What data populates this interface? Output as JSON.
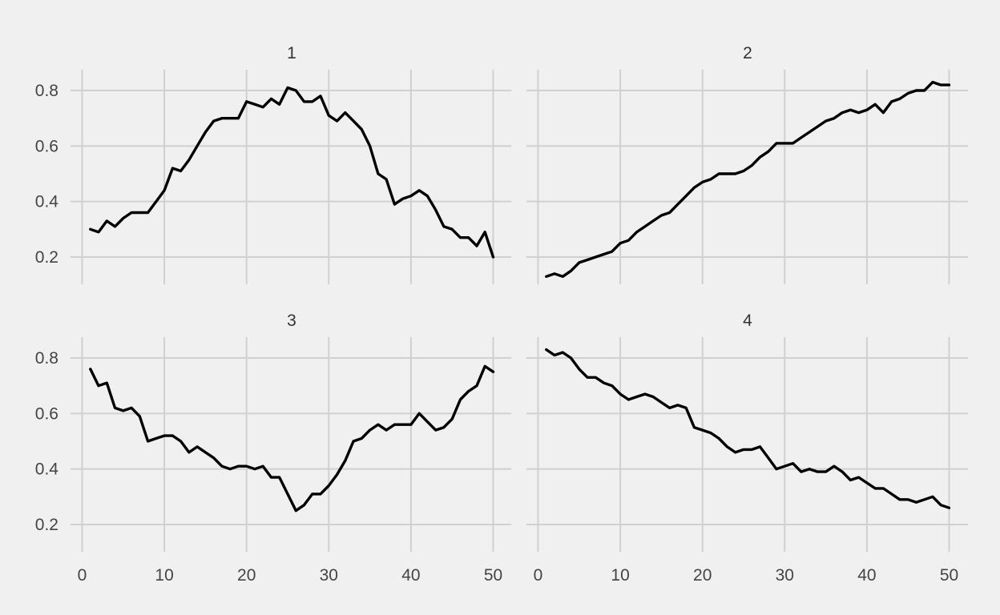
{
  "colors": {
    "background": "#f0f0f0",
    "grid": "#d0d0d0",
    "line": "#000000",
    "text": "#444444"
  },
  "chart_data": [
    {
      "type": "line",
      "panel": "1",
      "xlim": [
        0,
        50
      ],
      "ylim": [
        0.1,
        0.87
      ],
      "x_ticks": [
        0,
        10,
        20,
        30,
        40,
        50
      ],
      "y_ticks": [
        0.2,
        0.4,
        0.6,
        0.8
      ],
      "y_tick_labels": [
        "0.2",
        "0.4",
        "0.6",
        "0.8"
      ],
      "x_tick_labels": [],
      "grid": true,
      "x": [
        1,
        2,
        3,
        4,
        5,
        6,
        7,
        8,
        9,
        10,
        11,
        12,
        13,
        14,
        15,
        16,
        17,
        18,
        19,
        20,
        21,
        22,
        23,
        24,
        25,
        26,
        27,
        28,
        29,
        30,
        31,
        32,
        33,
        34,
        35,
        36,
        37,
        38,
        39,
        40,
        41,
        42,
        43,
        44,
        45,
        46,
        47,
        48,
        49,
        50
      ],
      "y": [
        0.3,
        0.29,
        0.33,
        0.31,
        0.34,
        0.36,
        0.36,
        0.36,
        0.4,
        0.44,
        0.52,
        0.51,
        0.55,
        0.6,
        0.65,
        0.69,
        0.7,
        0.7,
        0.7,
        0.76,
        0.75,
        0.74,
        0.77,
        0.75,
        0.81,
        0.8,
        0.76,
        0.76,
        0.78,
        0.71,
        0.69,
        0.72,
        0.69,
        0.66,
        0.6,
        0.5,
        0.48,
        0.39,
        0.41,
        0.42,
        0.44,
        0.42,
        0.37,
        0.31,
        0.3,
        0.27,
        0.27,
        0.24,
        0.29,
        0.2
      ]
    },
    {
      "type": "line",
      "panel": "2",
      "xlim": [
        0,
        50
      ],
      "ylim": [
        0.1,
        0.87
      ],
      "x_ticks": [
        0,
        10,
        20,
        30,
        40,
        50
      ],
      "y_ticks": [
        0.2,
        0.4,
        0.6,
        0.8
      ],
      "y_tick_labels": [],
      "x_tick_labels": [],
      "grid": true,
      "x": [
        1,
        2,
        3,
        4,
        5,
        6,
        7,
        8,
        9,
        10,
        11,
        12,
        13,
        14,
        15,
        16,
        17,
        18,
        19,
        20,
        21,
        22,
        23,
        24,
        25,
        26,
        27,
        28,
        29,
        30,
        31,
        32,
        33,
        34,
        35,
        36,
        37,
        38,
        39,
        40,
        41,
        42,
        43,
        44,
        45,
        46,
        47,
        48,
        49,
        50
      ],
      "y": [
        0.13,
        0.14,
        0.13,
        0.15,
        0.18,
        0.19,
        0.2,
        0.21,
        0.22,
        0.25,
        0.26,
        0.29,
        0.31,
        0.33,
        0.35,
        0.36,
        0.39,
        0.42,
        0.45,
        0.47,
        0.48,
        0.5,
        0.5,
        0.5,
        0.51,
        0.53,
        0.56,
        0.58,
        0.61,
        0.61,
        0.61,
        0.63,
        0.65,
        0.67,
        0.69,
        0.7,
        0.72,
        0.73,
        0.72,
        0.73,
        0.75,
        0.72,
        0.76,
        0.77,
        0.79,
        0.8,
        0.8,
        0.83,
        0.82,
        0.82
      ]
    },
    {
      "type": "line",
      "panel": "3",
      "xlim": [
        0,
        50
      ],
      "ylim": [
        0.1,
        0.87
      ],
      "x_ticks": [
        0,
        10,
        20,
        30,
        40,
        50
      ],
      "y_ticks": [
        0.2,
        0.4,
        0.6,
        0.8
      ],
      "y_tick_labels": [
        "0.2",
        "0.4",
        "0.6",
        "0.8"
      ],
      "x_tick_labels": [
        "0",
        "10",
        "20",
        "30",
        "40",
        "50"
      ],
      "grid": true,
      "x": [
        1,
        2,
        3,
        4,
        5,
        6,
        7,
        8,
        9,
        10,
        11,
        12,
        13,
        14,
        15,
        16,
        17,
        18,
        19,
        20,
        21,
        22,
        23,
        24,
        25,
        26,
        27,
        28,
        29,
        30,
        31,
        32,
        33,
        34,
        35,
        36,
        37,
        38,
        39,
        40,
        41,
        42,
        43,
        44,
        45,
        46,
        47,
        48,
        49,
        50
      ],
      "y": [
        0.76,
        0.7,
        0.71,
        0.62,
        0.61,
        0.62,
        0.59,
        0.5,
        0.51,
        0.52,
        0.52,
        0.5,
        0.46,
        0.48,
        0.46,
        0.44,
        0.41,
        0.4,
        0.41,
        0.41,
        0.4,
        0.41,
        0.37,
        0.37,
        0.31,
        0.25,
        0.27,
        0.31,
        0.31,
        0.34,
        0.38,
        0.43,
        0.5,
        0.51,
        0.54,
        0.56,
        0.54,
        0.56,
        0.56,
        0.56,
        0.6,
        0.57,
        0.54,
        0.55,
        0.58,
        0.65,
        0.68,
        0.7,
        0.77,
        0.75
      ]
    },
    {
      "type": "line",
      "panel": "4",
      "xlim": [
        0,
        50
      ],
      "ylim": [
        0.1,
        0.87
      ],
      "x_ticks": [
        0,
        10,
        20,
        30,
        40,
        50
      ],
      "y_ticks": [
        0.2,
        0.4,
        0.6,
        0.8
      ],
      "y_tick_labels": [],
      "x_tick_labels": [
        "0",
        "10",
        "20",
        "30",
        "40",
        "50"
      ],
      "grid": true,
      "x": [
        1,
        2,
        3,
        4,
        5,
        6,
        7,
        8,
        9,
        10,
        11,
        12,
        13,
        14,
        15,
        16,
        17,
        18,
        19,
        20,
        21,
        22,
        23,
        24,
        25,
        26,
        27,
        28,
        29,
        30,
        31,
        32,
        33,
        34,
        35,
        36,
        37,
        38,
        39,
        40,
        41,
        42,
        43,
        44,
        45,
        46,
        47,
        48,
        49,
        50
      ],
      "y": [
        0.83,
        0.81,
        0.82,
        0.8,
        0.76,
        0.73,
        0.73,
        0.71,
        0.7,
        0.67,
        0.65,
        0.66,
        0.67,
        0.66,
        0.64,
        0.62,
        0.63,
        0.62,
        0.55,
        0.54,
        0.53,
        0.51,
        0.48,
        0.46,
        0.47,
        0.47,
        0.48,
        0.44,
        0.4,
        0.41,
        0.42,
        0.39,
        0.4,
        0.39,
        0.39,
        0.41,
        0.39,
        0.36,
        0.37,
        0.35,
        0.33,
        0.33,
        0.31,
        0.29,
        0.29,
        0.28,
        0.29,
        0.3,
        0.27,
        0.26
      ]
    }
  ]
}
